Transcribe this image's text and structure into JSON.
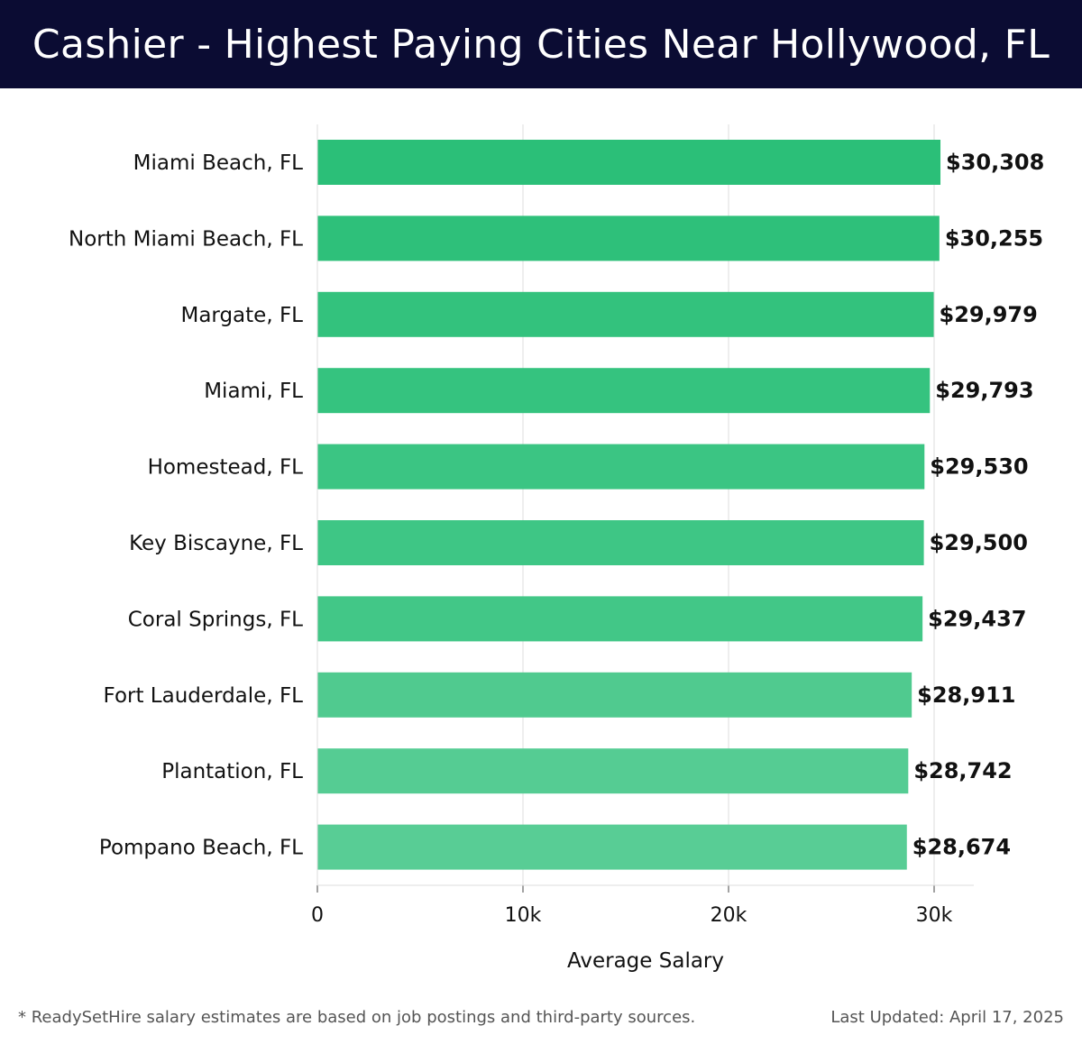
{
  "header": {
    "title": "Cashier - Highest Paying Cities Near Hollywood, FL"
  },
  "footer": {
    "note": "* ReadySetHire salary estimates are based on job postings and third-party sources.",
    "updated": "Last Updated: April 17, 2025"
  },
  "chart_data": {
    "type": "bar",
    "orientation": "horizontal",
    "categories": [
      "Miami Beach, FL",
      "North Miami Beach, FL",
      "Margate, FL",
      "Miami, FL",
      "Homestead, FL",
      "Key Biscayne, FL",
      "Coral Springs, FL",
      "Fort Lauderdale, FL",
      "Plantation, FL",
      "Pompano Beach, FL"
    ],
    "values": [
      30308,
      30255,
      29979,
      29793,
      29530,
      29500,
      29437,
      28911,
      28742,
      28674
    ],
    "value_labels": [
      "$30,308",
      "$30,255",
      "$29,979",
      "$29,793",
      "$29,530",
      "$29,500",
      "$29,437",
      "$28,911",
      "$28,742",
      "$28,674"
    ],
    "xlabel": "Average Salary",
    "ylabel": "",
    "xlim": [
      0,
      32000
    ],
    "xticks": [
      0,
      10000,
      20000,
      30000
    ],
    "xtick_labels": [
      "0",
      "10k",
      "20k",
      "30k"
    ],
    "grid": "vertical",
    "legend": "none",
    "bar_colors": [
      "#2bbf78",
      "#2ec07a",
      "#33c27d",
      "#35c37f",
      "#3bc583",
      "#3ec685",
      "#42c787",
      "#50ca8f",
      "#55cc93",
      "#58cd95"
    ]
  }
}
